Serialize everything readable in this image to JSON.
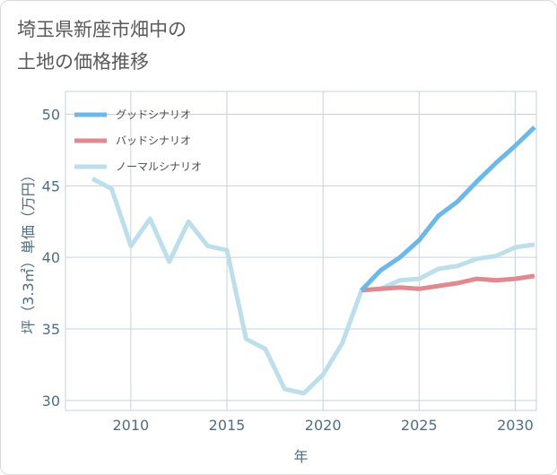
{
  "title": {
    "line1": "埼玉県新座市畑中の",
    "line2": "土地の価格推移"
  },
  "colors": {
    "good": "#6cb8ea",
    "bad": "#e0898f",
    "normal": "#bcdfeb",
    "grid": "#c3d3de",
    "axis_text": "#4d6d87"
  },
  "chart_data": {
    "type": "line",
    "title": "埼玉県新座市畑中の土地の価格推移",
    "xlabel": "年",
    "ylabel": "坪（3.3㎡）単価（万円）",
    "xlim": [
      2006.6,
      2031.1
    ],
    "ylim": [
      29.3,
      51.6
    ],
    "x_ticks": [
      2010,
      2015,
      2020,
      2025,
      2030
    ],
    "y_ticks": [
      30,
      35,
      40,
      45,
      50
    ],
    "grid": true,
    "legend_position": "top-left",
    "series": [
      {
        "name": "グッドシナリオ",
        "color": "#6cb8ea",
        "x": [
          2022,
          2023,
          2024,
          2025,
          2026,
          2027,
          2028,
          2029,
          2030,
          2031
        ],
        "y": [
          37.7,
          39.1,
          40.0,
          41.2,
          42.9,
          43.9,
          45.3,
          46.6,
          47.8,
          49.1
        ]
      },
      {
        "name": "バッドシナリオ",
        "color": "#e0898f",
        "x": [
          2022,
          2023,
          2024,
          2025,
          2026,
          2027,
          2028,
          2029,
          2030,
          2031
        ],
        "y": [
          37.7,
          37.8,
          37.9,
          37.8,
          38.0,
          38.2,
          38.5,
          38.4,
          38.5,
          38.7
        ]
      },
      {
        "name": "ノーマルシナリオ",
        "color": "#bcdfeb",
        "x": [
          2008,
          2009,
          2010,
          2011,
          2012,
          2013,
          2014,
          2015,
          2016,
          2017,
          2018,
          2019,
          2020,
          2021,
          2022,
          2023,
          2024,
          2025,
          2026,
          2027,
          2028,
          2029,
          2030,
          2031
        ],
        "y": [
          45.5,
          44.8,
          40.8,
          42.7,
          39.7,
          42.5,
          40.8,
          40.5,
          34.3,
          33.6,
          30.8,
          30.5,
          31.8,
          34.0,
          37.7,
          37.8,
          38.4,
          38.5,
          39.2,
          39.4,
          39.9,
          40.1,
          40.7,
          40.9
        ]
      }
    ]
  }
}
